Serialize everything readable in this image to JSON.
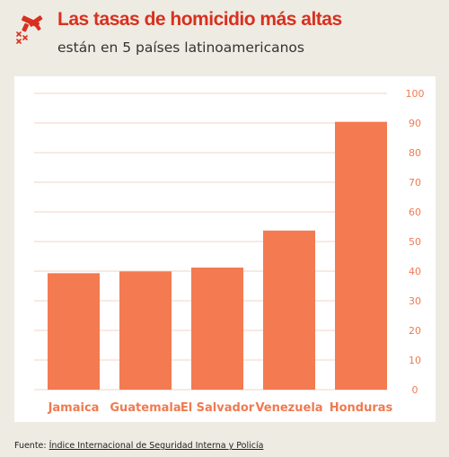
{
  "header": {
    "title": "Las tasas de homicidio más altas",
    "subtitle": "están en 5 países latinoamericanos",
    "logo_icon": "crossed-pistols-icon"
  },
  "footer": {
    "source_prefix": "Fuente: ",
    "source_link": "Índice Internacional de Seguridad Interna y Policía"
  },
  "colors": {
    "accent": "#d8301f",
    "bar": "#f37a51",
    "axis_text": "#f07a50",
    "background": "#eeebe2",
    "panel": "#ffffff",
    "grid": "#f3d3c7"
  },
  "chart_data": {
    "type": "bar",
    "categories": [
      "Jamaica",
      "Guatemala",
      "El Salvador",
      "Venezuela",
      "Honduras"
    ],
    "values": [
      39.3,
      39.9,
      41.2,
      53.7,
      90.4
    ],
    "title": "Las tasas de homicidio más altas",
    "subtitle": "están en 5 países latinoamericanos",
    "xlabel": "",
    "ylabel": "",
    "ylim": [
      0,
      100
    ],
    "yticks": [
      0,
      10,
      20,
      30,
      40,
      50,
      60,
      70,
      80,
      90,
      100
    ],
    "y_axis_position": "right",
    "grid": true
  }
}
